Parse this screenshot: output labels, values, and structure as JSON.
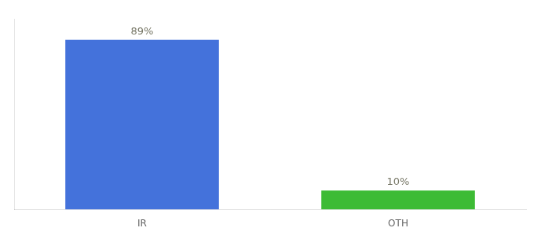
{
  "chart_data": {
    "type": "bar",
    "categories": [
      "IR",
      "OTH"
    ],
    "values": [
      89,
      10
    ],
    "value_labels": [
      "89%",
      "10%"
    ],
    "colors": [
      "#4472db",
      "#3dbb35"
    ],
    "ylim": [
      0,
      100
    ],
    "grid": false,
    "data_labels": true,
    "tick_labels": "x"
  }
}
